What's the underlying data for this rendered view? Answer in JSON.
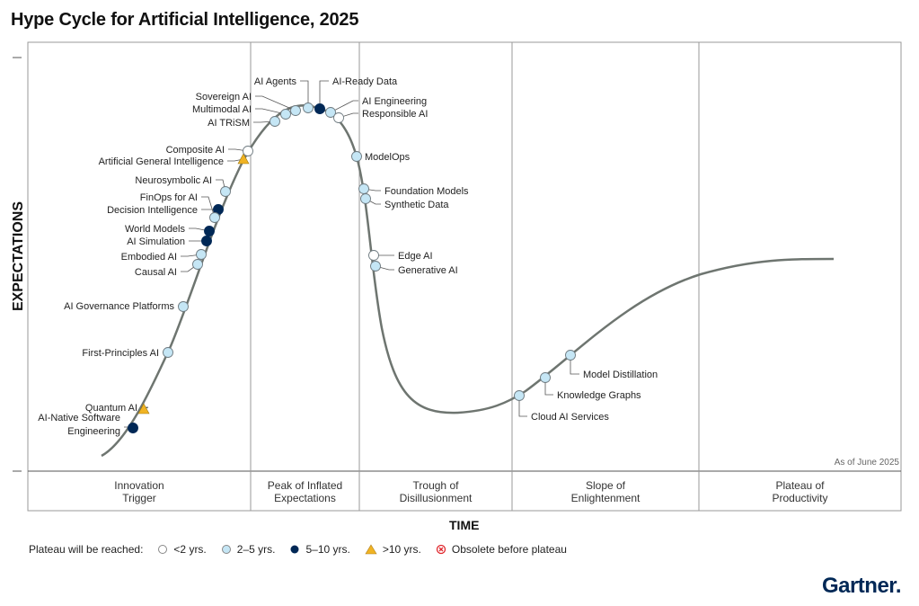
{
  "title": "Hype Cycle for Artificial Intelligence, 2025",
  "y_axis_label": "EXPECTATIONS",
  "x_axis_label": "TIME",
  "as_of": "As of June 2025",
  "logo": "Gartner.",
  "phases": [
    {
      "line1": "Innovation",
      "line2": "Trigger"
    },
    {
      "line1": "Peak of Inflated",
      "line2": "Expectations"
    },
    {
      "line1": "Trough of",
      "line2": "Disillusionment"
    },
    {
      "line1": "Slope of",
      "line2": "Enlightenment"
    },
    {
      "line1": "Plateau of",
      "line2": "Productivity"
    }
  ],
  "legend": {
    "title": "Plateau will be reached:",
    "items": [
      {
        "key": "lt2",
        "label": "<2 yrs."
      },
      {
        "key": "2to5",
        "label": "2–5 yrs."
      },
      {
        "key": "5to10",
        "label": "5–10 yrs."
      },
      {
        "key": "gt10",
        "label": ">10 yrs."
      },
      {
        "key": "obsolete",
        "label": "Obsolete before plateau"
      }
    ]
  },
  "colors": {
    "lt2": "#ffffff",
    "2to5": "#c5e6f5",
    "5to10": "#002856",
    "gt10": "#f0b323",
    "obsolete": "#e0282e",
    "curve": "#6e7570",
    "grid": "#9a9a9a"
  },
  "technologies": [
    {
      "name": "Quantum AI",
      "plateau": "gt10"
    },
    {
      "name": "AI-Native Software Engineering",
      "plateau": "5to10"
    },
    {
      "name": "First-Principles AI",
      "plateau": "2to5"
    },
    {
      "name": "AI Governance Platforms",
      "plateau": "2to5"
    },
    {
      "name": "Causal AI",
      "plateau": "2to5"
    },
    {
      "name": "Embodied AI",
      "plateau": "2to5"
    },
    {
      "name": "AI Simulation",
      "plateau": "5to10"
    },
    {
      "name": "World Models",
      "plateau": "5to10"
    },
    {
      "name": "Decision Intelligence",
      "plateau": "5to10"
    },
    {
      "name": "FinOps for AI",
      "plateau": "2to5"
    },
    {
      "name": "Neurosymbolic AI",
      "plateau": "2to5"
    },
    {
      "name": "Artificial General Intelligence",
      "plateau": "gt10"
    },
    {
      "name": "Composite AI",
      "plateau": "lt2"
    },
    {
      "name": "AI TRiSM",
      "plateau": "2to5"
    },
    {
      "name": "Multimodal AI",
      "plateau": "2to5"
    },
    {
      "name": "Sovereign AI",
      "plateau": "2to5"
    },
    {
      "name": "AI Agents",
      "plateau": "2to5"
    },
    {
      "name": "AI-Ready Data",
      "plateau": "5to10"
    },
    {
      "name": "AI Engineering",
      "plateau": "2to5"
    },
    {
      "name": "Responsible AI",
      "plateau": "lt2"
    },
    {
      "name": "ModelOps",
      "plateau": "2to5"
    },
    {
      "name": "Foundation Models",
      "plateau": "2to5"
    },
    {
      "name": "Synthetic Data",
      "plateau": "2to5"
    },
    {
      "name": "Edge AI",
      "plateau": "lt2"
    },
    {
      "name": "Generative AI",
      "plateau": "2to5"
    },
    {
      "name": "Cloud AI Services",
      "plateau": "2to5"
    },
    {
      "name": "Knowledge Graphs",
      "plateau": "2to5"
    },
    {
      "name": "Model Distillation",
      "plateau": "2to5"
    }
  ]
}
